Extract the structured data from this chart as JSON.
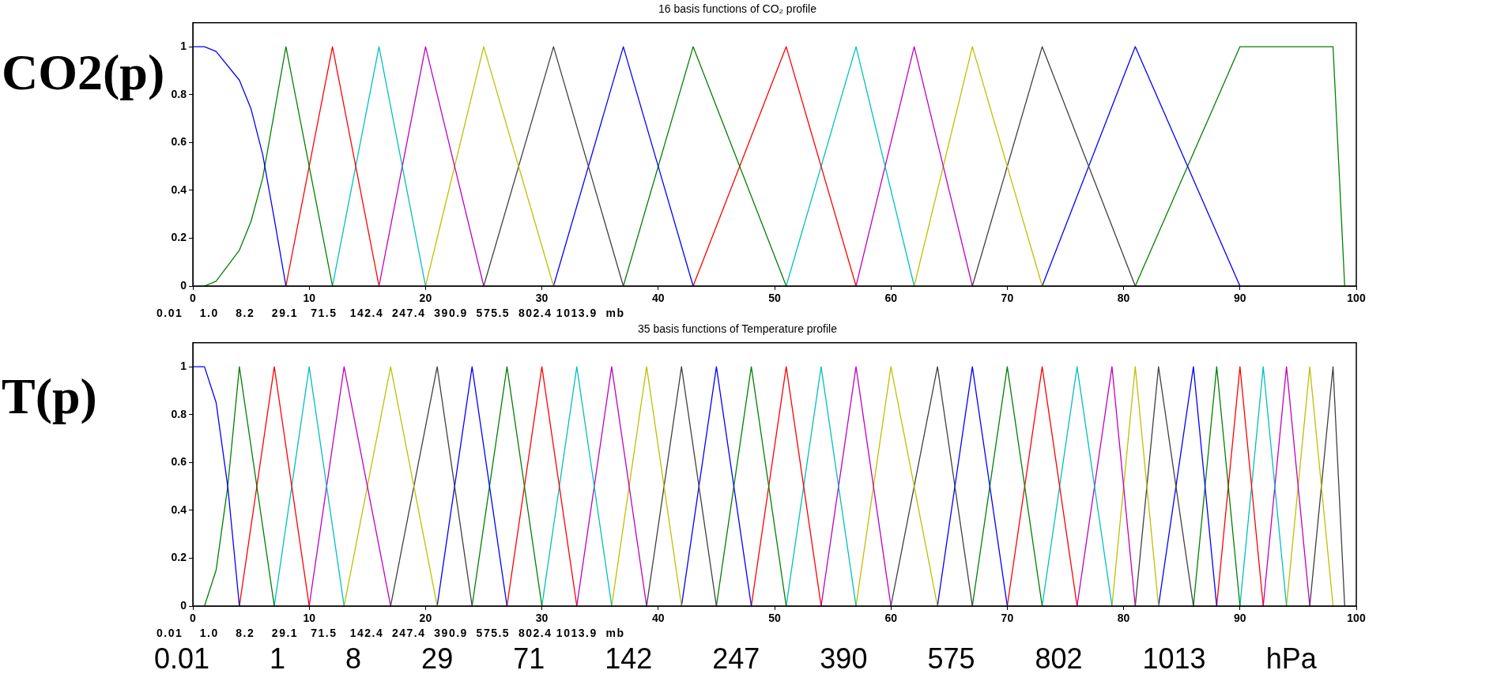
{
  "chart_data": [
    {
      "type": "line",
      "title": "16 basis functions of CO₂ profile",
      "ylabel": "CO2(p)",
      "marker": "none",
      "xlim": [
        0,
        100
      ],
      "xticks": [
        0,
        10,
        20,
        30,
        40,
        50,
        60,
        70,
        80,
        90,
        100
      ],
      "ylim": [
        0,
        1.1
      ],
      "yticks": [
        0,
        0.2,
        0.4,
        0.6,
        0.8,
        1
      ],
      "annotations": [
        "0.01    1.0    8.2    29.1   71.5   142.4  247.4  390.9  575.5  802.4 1013.9  mb"
      ],
      "series": [
        {
          "color": "#0000ff",
          "x": [
            0,
            1,
            2,
            4,
            5,
            6,
            7,
            8
          ],
          "values": [
            1,
            1,
            0.98,
            0.86,
            0.74,
            0.55,
            0.28,
            0
          ]
        },
        {
          "color": "#008000",
          "x": [
            1,
            2,
            4,
            5,
            6,
            8,
            12
          ],
          "values": [
            0,
            0.02,
            0.15,
            0.27,
            0.45,
            1,
            0
          ]
        },
        {
          "color": "#ff0000",
          "x": [
            8,
            12,
            16
          ],
          "values": [
            0,
            1,
            0
          ]
        },
        {
          "color": "#00bfbf",
          "x": [
            12,
            16,
            20
          ],
          "values": [
            0,
            1,
            0
          ]
        },
        {
          "color": "#bf00bf",
          "x": [
            16,
            20,
            25
          ],
          "values": [
            0,
            1,
            0
          ]
        },
        {
          "color": "#bfbf00",
          "x": [
            20,
            25,
            31
          ],
          "values": [
            0,
            1,
            0
          ]
        },
        {
          "color": "#404040",
          "x": [
            25,
            31,
            37
          ],
          "values": [
            0,
            1,
            0
          ]
        },
        {
          "color": "#0000ff",
          "x": [
            31,
            37,
            43
          ],
          "values": [
            0,
            1,
            0
          ]
        },
        {
          "color": "#008000",
          "x": [
            37,
            43,
            51
          ],
          "values": [
            0,
            1,
            0
          ]
        },
        {
          "color": "#ff0000",
          "x": [
            43,
            51,
            57
          ],
          "values": [
            0,
            1,
            0
          ]
        },
        {
          "color": "#00bfbf",
          "x": [
            51,
            57,
            62
          ],
          "values": [
            0,
            1,
            0
          ]
        },
        {
          "color": "#bf00bf",
          "x": [
            57,
            62,
            67
          ],
          "values": [
            0,
            1,
            0
          ]
        },
        {
          "color": "#bfbf00",
          "x": [
            62,
            67,
            73
          ],
          "values": [
            0,
            1,
            0
          ]
        },
        {
          "color": "#404040",
          "x": [
            67,
            73,
            81
          ],
          "values": [
            0,
            1,
            0
          ]
        },
        {
          "color": "#0000ff",
          "x": [
            73,
            81,
            90
          ],
          "values": [
            0,
            1,
            0
          ]
        },
        {
          "color": "#008000",
          "x": [
            81,
            90,
            98,
            99
          ],
          "values": [
            0,
            1,
            1,
            0
          ]
        }
      ]
    },
    {
      "type": "line",
      "title": "35 basis functions of Temperature profile",
      "ylabel": "T(p)",
      "marker": "none",
      "xlim": [
        0,
        100
      ],
      "xticks": [
        0,
        10,
        20,
        30,
        40,
        50,
        60,
        70,
        80,
        90,
        100
      ],
      "ylim": [
        0,
        1.1
      ],
      "yticks": [
        0,
        0.2,
        0.4,
        0.6,
        0.8,
        1
      ],
      "annotations": [
        "0.01    1.0    8.2    29.1   71.5   142.4  247.4  390.9  575.5  802.4 1013.9  mb",
        "0.01 1 8 29 71 142 247 390 575 802 1013 hPa"
      ],
      "series": [
        {
          "color": "#0000ff",
          "x": [
            0,
            1,
            2,
            3,
            4
          ],
          "values": [
            1,
            1,
            0.85,
            0.5,
            0
          ]
        },
        {
          "color": "#008000",
          "x": [
            1,
            2,
            3,
            4,
            7
          ],
          "values": [
            0,
            0.15,
            0.5,
            1,
            0
          ]
        },
        {
          "color": "#ff0000",
          "x": [
            4,
            7,
            10
          ],
          "values": [
            0,
            1,
            0
          ]
        },
        {
          "color": "#00bfbf",
          "x": [
            7,
            10,
            13
          ],
          "values": [
            0,
            1,
            0
          ]
        },
        {
          "color": "#bf00bf",
          "x": [
            10,
            13,
            17
          ],
          "values": [
            0,
            1,
            0
          ]
        },
        {
          "color": "#bfbf00",
          "x": [
            13,
            17,
            21
          ],
          "values": [
            0,
            1,
            0
          ]
        },
        {
          "color": "#404040",
          "x": [
            17,
            21,
            24
          ],
          "values": [
            0,
            1,
            0
          ]
        },
        {
          "color": "#0000ff",
          "x": [
            21,
            24,
            27
          ],
          "values": [
            0,
            1,
            0
          ]
        },
        {
          "color": "#008000",
          "x": [
            24,
            27,
            30
          ],
          "values": [
            0,
            1,
            0
          ]
        },
        {
          "color": "#ff0000",
          "x": [
            27,
            30,
            33
          ],
          "values": [
            0,
            1,
            0
          ]
        },
        {
          "color": "#00bfbf",
          "x": [
            30,
            33,
            36
          ],
          "values": [
            0,
            1,
            0
          ]
        },
        {
          "color": "#bf00bf",
          "x": [
            33,
            36,
            39
          ],
          "values": [
            0,
            1,
            0
          ]
        },
        {
          "color": "#bfbf00",
          "x": [
            36,
            39,
            42
          ],
          "values": [
            0,
            1,
            0
          ]
        },
        {
          "color": "#404040",
          "x": [
            39,
            42,
            45
          ],
          "values": [
            0,
            1,
            0
          ]
        },
        {
          "color": "#0000ff",
          "x": [
            42,
            45,
            48
          ],
          "values": [
            0,
            1,
            0
          ]
        },
        {
          "color": "#008000",
          "x": [
            45,
            48,
            51
          ],
          "values": [
            0,
            1,
            0
          ]
        },
        {
          "color": "#ff0000",
          "x": [
            48,
            51,
            54
          ],
          "values": [
            0,
            1,
            0
          ]
        },
        {
          "color": "#00bfbf",
          "x": [
            51,
            54,
            57
          ],
          "values": [
            0,
            1,
            0
          ]
        },
        {
          "color": "#bf00bf",
          "x": [
            54,
            57,
            60
          ],
          "values": [
            0,
            1,
            0
          ]
        },
        {
          "color": "#bfbf00",
          "x": [
            57,
            60,
            64
          ],
          "values": [
            0,
            1,
            0
          ]
        },
        {
          "color": "#404040",
          "x": [
            60,
            64,
            67
          ],
          "values": [
            0,
            1,
            0
          ]
        },
        {
          "color": "#0000ff",
          "x": [
            64,
            67,
            70
          ],
          "values": [
            0,
            1,
            0
          ]
        },
        {
          "color": "#008000",
          "x": [
            67,
            70,
            73
          ],
          "values": [
            0,
            1,
            0
          ]
        },
        {
          "color": "#ff0000",
          "x": [
            70,
            73,
            76
          ],
          "values": [
            0,
            1,
            0
          ]
        },
        {
          "color": "#00bfbf",
          "x": [
            73,
            76,
            79
          ],
          "values": [
            0,
            1,
            0
          ]
        },
        {
          "color": "#bf00bf",
          "x": [
            76,
            79,
            81
          ],
          "values": [
            0,
            1,
            0
          ]
        },
        {
          "color": "#bfbf00",
          "x": [
            79,
            81,
            83
          ],
          "values": [
            0,
            1,
            0
          ]
        },
        {
          "color": "#404040",
          "x": [
            81,
            83,
            86
          ],
          "values": [
            0,
            1,
            0
          ]
        },
        {
          "color": "#0000ff",
          "x": [
            83,
            86,
            88
          ],
          "values": [
            0,
            1,
            0
          ]
        },
        {
          "color": "#008000",
          "x": [
            86,
            88,
            90
          ],
          "values": [
            0,
            1,
            0
          ]
        },
        {
          "color": "#ff0000",
          "x": [
            88,
            90,
            92
          ],
          "values": [
            0,
            1,
            0
          ]
        },
        {
          "color": "#00bfbf",
          "x": [
            90,
            92,
            94
          ],
          "values": [
            0,
            1,
            0
          ]
        },
        {
          "color": "#bf00bf",
          "x": [
            92,
            94,
            96
          ],
          "values": [
            0,
            1,
            0
          ]
        },
        {
          "color": "#bfbf00",
          "x": [
            94,
            96,
            98
          ],
          "values": [
            0,
            1,
            0
          ]
        },
        {
          "color": "#404040",
          "x": [
            96,
            98,
            99
          ],
          "values": [
            0,
            1,
            0
          ]
        }
      ]
    }
  ]
}
